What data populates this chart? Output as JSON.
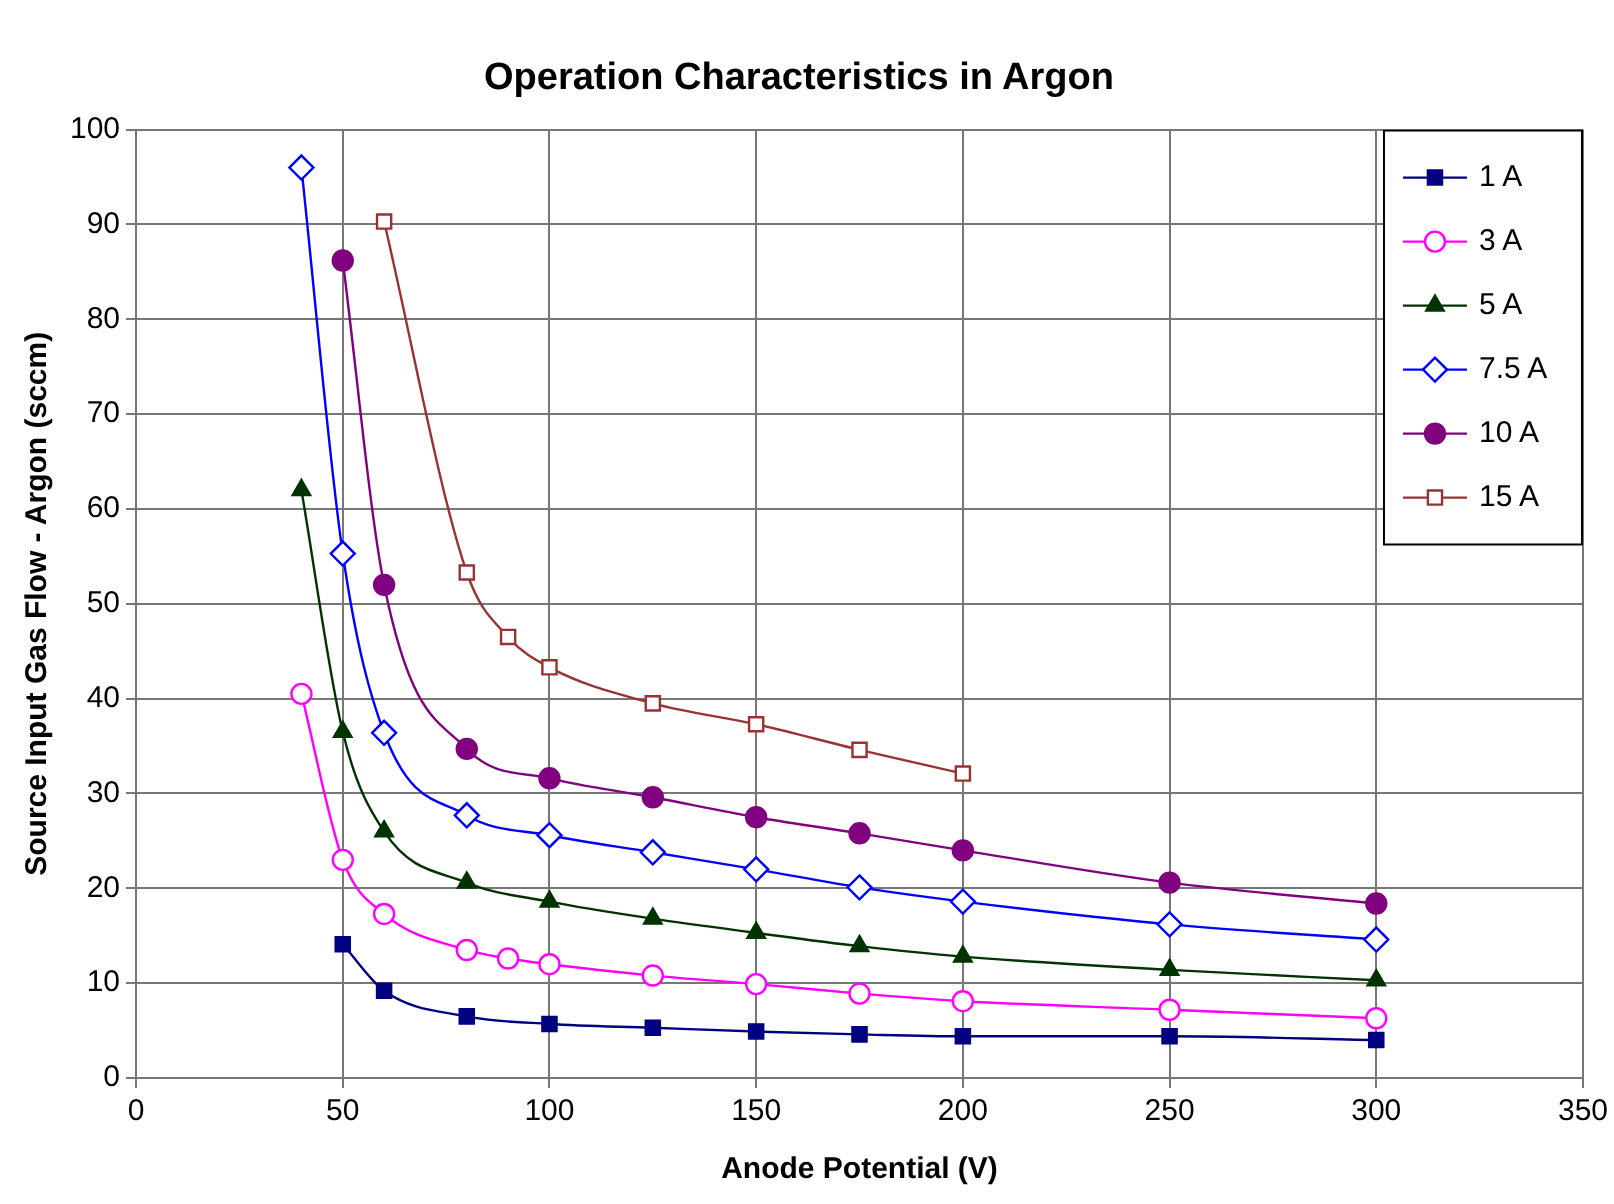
{
  "chart_data": {
    "type": "line",
    "title": "Operation Characteristics in Argon",
    "xlabel": "Anode Potential (V)",
    "ylabel": "Source Input Gas Flow - Argon (sccm)",
    "xlim": [
      0,
      350
    ],
    "xticks": [
      0,
      50,
      100,
      150,
      200,
      250,
      300,
      350
    ],
    "ylim": [
      0,
      100
    ],
    "yticks": [
      0,
      10,
      20,
      30,
      40,
      50,
      60,
      70,
      80,
      90,
      100
    ],
    "grid": true,
    "legend": "top right",
    "series": [
      {
        "name": "1 A",
        "color": "#000080",
        "marker": "square",
        "x": [
          50,
          60,
          80,
          100,
          125,
          150,
          175,
          200,
          250,
          300
        ],
        "values": [
          14.1,
          9.2,
          6.5,
          5.7,
          5.3,
          4.9,
          4.6,
          4.4,
          4.4,
          4.0
        ]
      },
      {
        "name": "3 A",
        "color": "#ff00ff",
        "marker": "circle",
        "x": [
          40,
          50,
          60,
          80,
          90,
          100,
          125,
          150,
          175,
          200,
          250,
          300
        ],
        "values": [
          40.5,
          23.0,
          17.3,
          13.5,
          12.6,
          12.0,
          10.8,
          9.9,
          8.9,
          8.1,
          7.2,
          6.3
        ]
      },
      {
        "name": "5 A",
        "color": "#003300",
        "marker": "triangle",
        "x": [
          40,
          50,
          60,
          80,
          100,
          125,
          150,
          175,
          200,
          250,
          300
        ],
        "values": [
          62,
          36.5,
          26,
          20.6,
          18.6,
          16.8,
          15.3,
          13.9,
          12.8,
          11.4,
          10.3
        ]
      },
      {
        "name": "7.5 A",
        "color": "#0000ff",
        "marker": "diamond",
        "x": [
          40,
          50,
          60,
          80,
          100,
          125,
          150,
          175,
          200,
          250,
          300
        ],
        "values": [
          96,
          55.3,
          36.4,
          27.7,
          25.6,
          23.8,
          22,
          20.1,
          18.6,
          16.2,
          14.6
        ]
      },
      {
        "name": "10 A",
        "color": "#800080",
        "marker": "circle",
        "x": [
          50,
          60,
          80,
          100,
          125,
          150,
          175,
          200,
          250,
          300
        ],
        "values": [
          86.2,
          52,
          34.7,
          31.6,
          29.6,
          27.5,
          25.8,
          24,
          20.6,
          18.4
        ]
      },
      {
        "name": "15 A",
        "color": "#993333",
        "marker": "square",
        "x": [
          60,
          80,
          90,
          100,
          125,
          150,
          175,
          200
        ],
        "values": [
          90.3,
          53.3,
          46.5,
          43.3,
          39.5,
          37.3,
          34.6,
          32.1
        ]
      }
    ]
  }
}
